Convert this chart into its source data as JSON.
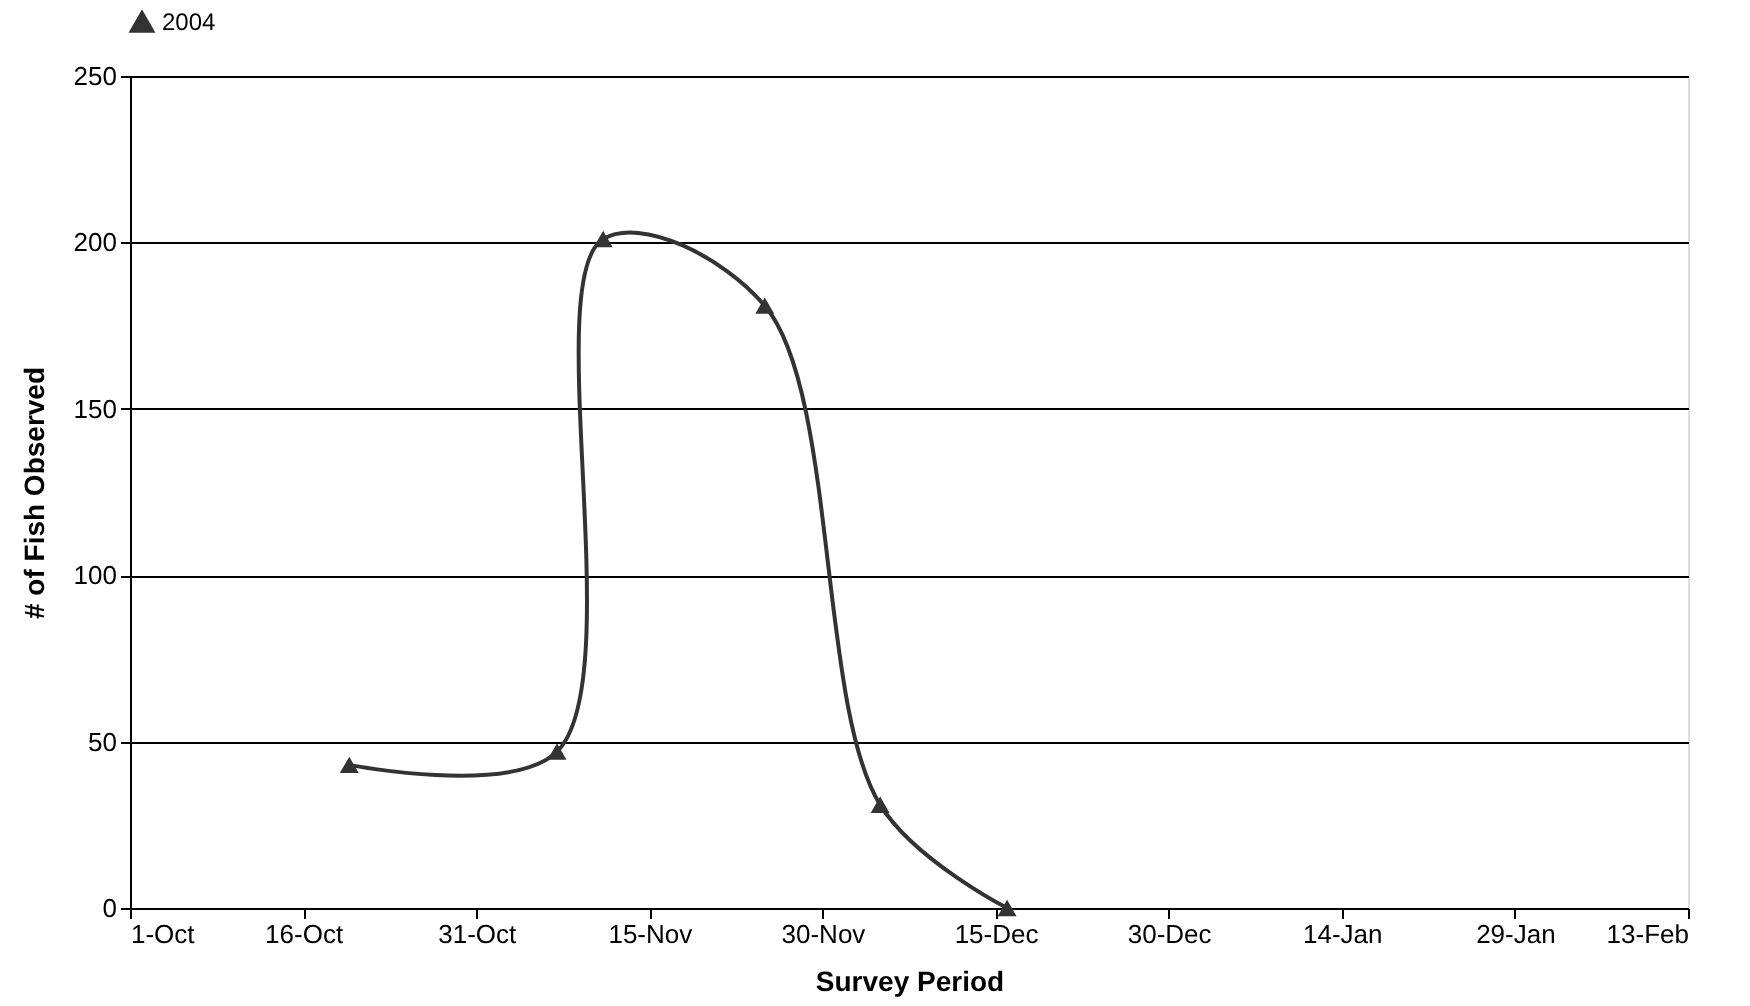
{
  "chart_data": {
    "type": "line",
    "xlabel": "Survey Period",
    "ylabel": "# of Fish Observed",
    "x": [
      "2004-10-20",
      "2004-11-07",
      "2004-11-11",
      "2004-11-25",
      "2004-12-05",
      "2004-12-16"
    ],
    "series": [
      {
        "name": "2004",
        "color": "#333333",
        "values": [
          43,
          47,
          201,
          181,
          31,
          0
        ]
      }
    ],
    "xlim": [
      "2004-10-01",
      "2005-02-13"
    ],
    "xticks": [
      {
        "value": "2004-10-01",
        "label": "1-Oct"
      },
      {
        "value": "2004-10-16",
        "label": "16-Oct"
      },
      {
        "value": "2004-10-31",
        "label": "31-Oct"
      },
      {
        "value": "2004-11-15",
        "label": "15-Nov"
      },
      {
        "value": "2004-11-30",
        "label": "30-Nov"
      },
      {
        "value": "2004-12-15",
        "label": "15-Dec"
      },
      {
        "value": "2004-12-30",
        "label": "30-Dec"
      },
      {
        "value": "2005-01-14",
        "label": "14-Jan"
      },
      {
        "value": "2005-01-29",
        "label": "29-Jan"
      },
      {
        "value": "2005-02-13",
        "label": "13-Feb"
      }
    ],
    "ylim": [
      0,
      250
    ],
    "yticks": [
      0,
      50,
      100,
      150,
      200,
      250
    ],
    "grid": "y",
    "legend": "top",
    "marker": "triangle",
    "line_style": "solid"
  }
}
